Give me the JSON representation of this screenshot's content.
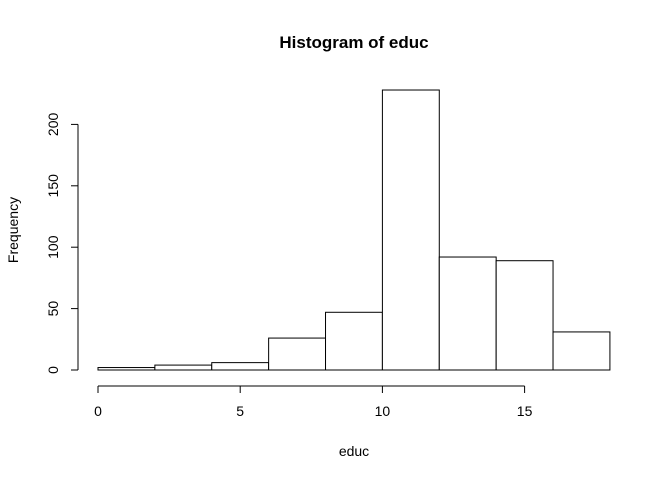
{
  "chart_data": {
    "type": "bar",
    "title": "Histogram of educ",
    "xlabel": "educ",
    "ylabel": "Frequency",
    "bins": [
      {
        "x0": 0,
        "x1": 2,
        "count": 2
      },
      {
        "x0": 2,
        "x1": 4,
        "count": 4
      },
      {
        "x0": 4,
        "x1": 6,
        "count": 6
      },
      {
        "x0": 6,
        "x1": 8,
        "count": 26
      },
      {
        "x0": 8,
        "x1": 10,
        "count": 47
      },
      {
        "x0": 10,
        "x1": 12,
        "count": 228
      },
      {
        "x0": 12,
        "x1": 14,
        "count": 92
      },
      {
        "x0": 14,
        "x1": 16,
        "count": 89
      },
      {
        "x0": 16,
        "x1": 18,
        "count": 31
      }
    ],
    "xlim": [
      0,
      18
    ],
    "ylim": [
      0,
      228
    ],
    "xticks": [
      0,
      5,
      10,
      15
    ],
    "yticks": [
      0,
      50,
      100,
      150,
      200
    ],
    "grid": false,
    "colors": {
      "bar_fill": "#ffffff",
      "bar_stroke": "#000000"
    }
  }
}
